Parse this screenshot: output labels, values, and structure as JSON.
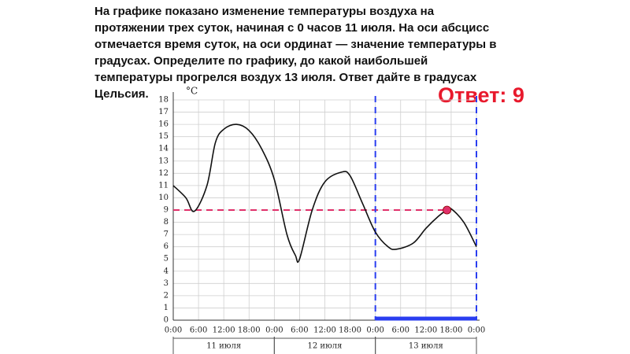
{
  "question_lines": [
    "На графике показано изменение температуры воздуха на",
    "протяжении трех суток, начиная с 0 часов 11 июля. На оси абсцисс",
    "отмечается время суток, на оси ординат — значение температуры в",
    "градусах. Определите по графику, до какой наибольшей",
    "температуры прогрелся воздух 13 июля. Ответ дайте в градусах",
    "Цельсия."
  ],
  "answer": "Ответ: 9",
  "chart_data": {
    "type": "line",
    "y_label": "°C",
    "x": [
      0,
      3,
      5,
      8,
      10,
      12,
      15,
      18,
      21,
      24,
      27,
      29,
      30,
      33,
      36,
      40,
      42,
      45,
      48,
      51,
      53,
      57,
      60,
      63,
      65,
      66,
      69,
      72
    ],
    "series": [
      {
        "color": "#111111",
        "values": [
          11,
          10,
          8.9,
          11,
          14.5,
          15.6,
          16,
          15.5,
          14,
          11.5,
          7,
          5.3,
          5,
          9,
          11.3,
          12.1,
          11.8,
          9.5,
          7.2,
          6,
          5.8,
          6.3,
          7.5,
          8.5,
          9,
          9.1,
          8,
          6
        ]
      }
    ],
    "xlim": [
      0,
      72
    ],
    "ylim": [
      0,
      18
    ],
    "xticks": [
      {
        "value": 0,
        "label": "0:00"
      },
      {
        "value": 6,
        "label": "6:00"
      },
      {
        "value": 12,
        "label": "12:00"
      },
      {
        "value": 18,
        "label": "18:00"
      },
      {
        "value": 24,
        "label": "0:00"
      },
      {
        "value": 30,
        "label": "6:00"
      },
      {
        "value": 36,
        "label": "12:00"
      },
      {
        "value": 42,
        "label": "18:00"
      },
      {
        "value": 48,
        "label": "0:00"
      },
      {
        "value": 54,
        "label": "6:00"
      },
      {
        "value": 60,
        "label": "12:00"
      },
      {
        "value": 66,
        "label": "18:00"
      },
      {
        "value": 72,
        "label": "0:00"
      }
    ],
    "yticks": [
      0,
      1,
      2,
      3,
      4,
      5,
      6,
      7,
      8,
      9,
      10,
      11,
      12,
      13,
      14,
      15,
      16,
      17,
      18
    ],
    "grid": true,
    "days": [
      {
        "label": "11 июля",
        "from": 0,
        "to": 24
      },
      {
        "label": "12 июля",
        "from": 24,
        "to": 48
      },
      {
        "label": "13 июля",
        "from": 48,
        "to": 72
      }
    ],
    "highlight": {
      "x_from": 48,
      "x_to": 72,
      "max_x": 65,
      "max_value": 9,
      "line_color": "#e0306a",
      "range_color": "#2a3ef0"
    }
  }
}
